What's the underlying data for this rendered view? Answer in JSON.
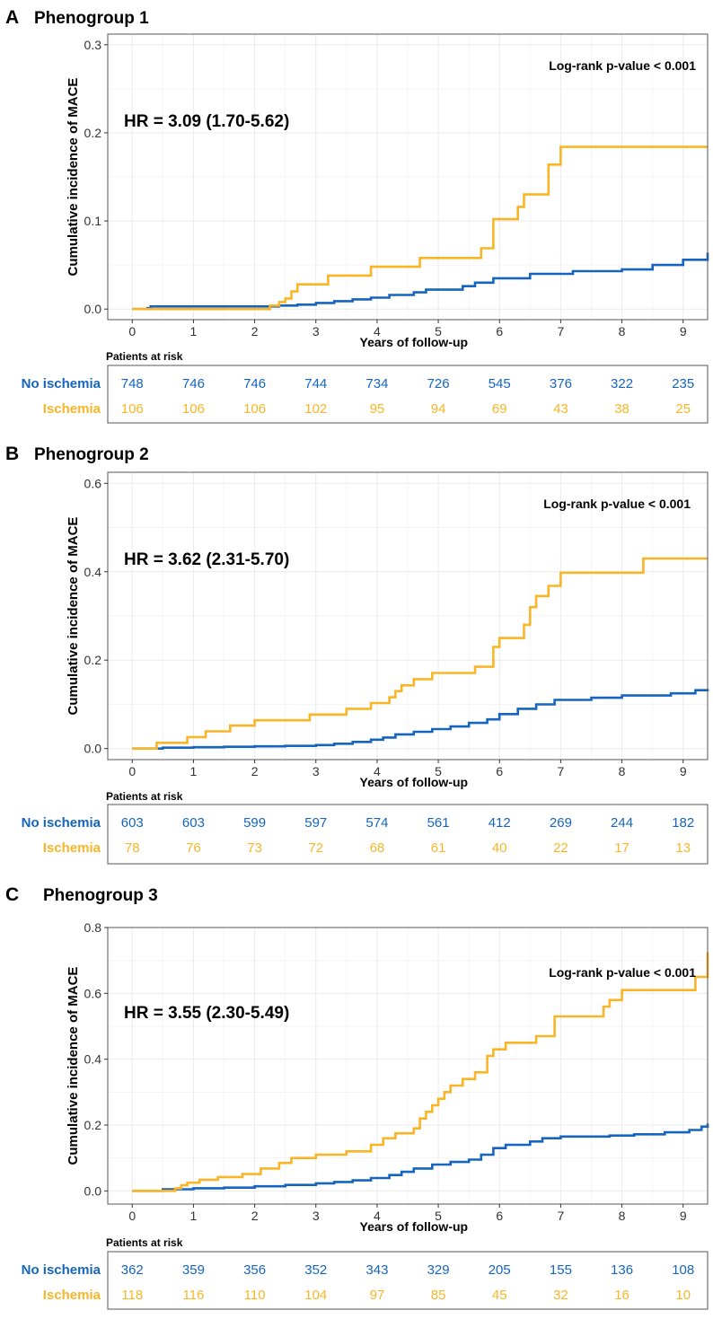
{
  "colors": {
    "no_ischemia": "#1565C0",
    "ischemia": "#F9B526",
    "grid": "#EBEBEB",
    "panel_border": "#555555",
    "axis_text": "#333333"
  },
  "chart_data": [
    {
      "type": "line",
      "step": true,
      "panel_letter": "A",
      "title": "Phenogroup 1",
      "xlabel": "Years of follow-up",
      "ylabel": "Cumulative incidence of MACE",
      "xlim": [
        -0.4,
        9.4
      ],
      "ylim": [
        -0.012,
        0.312
      ],
      "xticks": [
        0,
        1,
        2,
        3,
        4,
        5,
        6,
        7,
        8,
        9
      ],
      "xtick_labels": [
        "0",
        "1",
        "2",
        "3",
        "4",
        "5",
        "6",
        "7",
        "8",
        "9"
      ],
      "yticks": [
        0,
        0.1,
        0.2,
        0.3
      ],
      "ytick_labels": [
        "0.0",
        "0.1",
        "0.2",
        "0.3"
      ],
      "grid": true,
      "annotations": {
        "hr": "HR = 3.09 (1.70-5.62)",
        "logrank": "Log-rank p-value < 0.001"
      },
      "series": [
        {
          "name": "No ischemia",
          "x": [
            0,
            0.25,
            0.3,
            2.4,
            2.7,
            3.0,
            3.3,
            3.6,
            3.9,
            4.2,
            4.6,
            4.8,
            5.4,
            5.6,
            5.9,
            6.5,
            7.2,
            8.0,
            8.5,
            9.0,
            9.4
          ],
          "y": [
            0,
            0.001,
            0.003,
            0.004,
            0.005,
            0.007,
            0.009,
            0.011,
            0.013,
            0.016,
            0.019,
            0.022,
            0.026,
            0.03,
            0.035,
            0.04,
            0.043,
            0.045,
            0.05,
            0.056,
            0.064
          ]
        },
        {
          "name": "Ischemia",
          "x": [
            0,
            2.25,
            2.4,
            2.5,
            2.6,
            2.7,
            3.2,
            3.9,
            4.7,
            5.7,
            5.9,
            6.3,
            6.4,
            6.6,
            6.8,
            7.0,
            9.4
          ],
          "y": [
            0,
            0.004,
            0.008,
            0.012,
            0.02,
            0.028,
            0.038,
            0.048,
            0.058,
            0.069,
            0.102,
            0.116,
            0.13,
            0.13,
            0.164,
            0.184,
            0.184
          ]
        }
      ],
      "risk_table": {
        "title": "Patients at risk",
        "rows": [
          {
            "label": "No ischemia",
            "values": [
              "748",
              "746",
              "746",
              "744",
              "734",
              "726",
              "545",
              "376",
              "322",
              "235"
            ]
          },
          {
            "label": "Ischemia",
            "values": [
              "106",
              "106",
              "106",
              "102",
              "95",
              "94",
              "69",
              "43",
              "38",
              "25"
            ]
          }
        ]
      }
    },
    {
      "type": "line",
      "step": true,
      "panel_letter": "B",
      "title": "Phenogroup 2",
      "xlabel": "Years of follow-up",
      "ylabel": "Cumulative incidence of MACE",
      "xlim": [
        -0.4,
        9.4
      ],
      "ylim": [
        -0.025,
        0.625
      ],
      "xticks": [
        0,
        1,
        2,
        3,
        4,
        5,
        6,
        7,
        8,
        9
      ],
      "xtick_labels": [
        "0",
        "1",
        "2",
        "3",
        "4",
        "5",
        "6",
        "7",
        "8",
        "9"
      ],
      "yticks": [
        0,
        0.2,
        0.4,
        0.6
      ],
      "ytick_labels": [
        "0.0",
        "0.2",
        "0.4",
        "0.6"
      ],
      "grid": true,
      "annotations": {
        "hr": "HR = 3.62 (2.31-5.70)",
        "logrank": "Log-rank p-value < 0.001"
      },
      "series": [
        {
          "name": "No ischemia",
          "x": [
            0,
            0.5,
            1.0,
            1.5,
            2.0,
            2.5,
            3.0,
            3.3,
            3.6,
            3.9,
            4.1,
            4.3,
            4.6,
            4.9,
            5.2,
            5.5,
            5.8,
            6.0,
            6.3,
            6.6,
            6.9,
            7.5,
            8.0,
            8.8,
            9.2,
            9.4
          ],
          "y": [
            0,
            0.002,
            0.003,
            0.004,
            0.005,
            0.006,
            0.008,
            0.011,
            0.015,
            0.02,
            0.025,
            0.032,
            0.038,
            0.044,
            0.05,
            0.058,
            0.066,
            0.078,
            0.09,
            0.1,
            0.11,
            0.115,
            0.12,
            0.125,
            0.132,
            0.135
          ]
        },
        {
          "name": "Ischemia",
          "x": [
            0,
            0.4,
            0.9,
            1.2,
            1.6,
            2.0,
            2.9,
            3.5,
            3.9,
            4.2,
            4.3,
            4.4,
            4.6,
            4.9,
            5.6,
            5.9,
            6.0,
            6.4,
            6.5,
            6.6,
            6.8,
            7.0,
            8.35,
            9.4
          ],
          "y": [
            0,
            0.013,
            0.026,
            0.039,
            0.052,
            0.064,
            0.077,
            0.09,
            0.103,
            0.116,
            0.13,
            0.143,
            0.157,
            0.171,
            0.185,
            0.23,
            0.25,
            0.28,
            0.32,
            0.345,
            0.368,
            0.398,
            0.43,
            0.43
          ]
        }
      ],
      "risk_table": {
        "title": "Patients at risk",
        "rows": [
          {
            "label": "No ischemia",
            "values": [
              "603",
              "603",
              "599",
              "597",
              "574",
              "561",
              "412",
              "269",
              "244",
              "182"
            ]
          },
          {
            "label": "Ischemia",
            "values": [
              "78",
              "76",
              "73",
              "72",
              "68",
              "61",
              "40",
              "22",
              "17",
              "13"
            ]
          }
        ]
      }
    },
    {
      "type": "line",
      "step": true,
      "panel_letter": "C",
      "title": "Phenogroup 3",
      "xlabel": "Years of follow-up",
      "ylabel": "Cumulative incidence of MACE",
      "xlim": [
        -0.4,
        9.4
      ],
      "ylim": [
        -0.04,
        0.8
      ],
      "xticks": [
        0,
        1,
        2,
        3,
        4,
        5,
        6,
        7,
        8,
        9
      ],
      "xtick_labels": [
        "0",
        "1",
        "2",
        "3",
        "4",
        "5",
        "6",
        "7",
        "8",
        "9"
      ],
      "yticks": [
        0,
        0.2,
        0.4,
        0.6,
        0.8
      ],
      "ytick_labels": [
        "0.0",
        "0.2",
        "0.4",
        "0.6",
        "0.8"
      ],
      "grid": true,
      "annotations": {
        "hr": "HR = 3.55 (2.30-5.49)",
        "logrank": "Log-rank p-value < 0.001"
      },
      "series": [
        {
          "name": "No ischemia",
          "x": [
            0,
            0.5,
            1.0,
            1.5,
            2.0,
            2.5,
            3.0,
            3.3,
            3.6,
            3.9,
            4.2,
            4.4,
            4.6,
            4.9,
            5.2,
            5.5,
            5.7,
            5.9,
            6.1,
            6.5,
            6.7,
            7.0,
            7.8,
            8.2,
            8.7,
            9.1,
            9.3,
            9.4
          ],
          "y": [
            0,
            0.005,
            0.008,
            0.01,
            0.014,
            0.018,
            0.023,
            0.027,
            0.032,
            0.039,
            0.048,
            0.058,
            0.068,
            0.08,
            0.088,
            0.095,
            0.11,
            0.13,
            0.14,
            0.15,
            0.16,
            0.165,
            0.168,
            0.172,
            0.178,
            0.185,
            0.195,
            0.205
          ]
        },
        {
          "name": "Ischemia",
          "x": [
            0,
            0.7,
            0.8,
            0.9,
            1.1,
            1.4,
            1.8,
            2.1,
            2.4,
            2.6,
            3.0,
            3.5,
            3.9,
            4.1,
            4.3,
            4.6,
            4.7,
            4.8,
            4.9,
            5.0,
            5.1,
            5.2,
            5.4,
            5.6,
            5.8,
            5.9,
            6.1,
            6.6,
            6.9,
            7.7,
            7.8,
            8.0,
            9.2,
            9.4
          ],
          "y": [
            0,
            0.008,
            0.017,
            0.025,
            0.034,
            0.042,
            0.051,
            0.068,
            0.085,
            0.1,
            0.11,
            0.12,
            0.14,
            0.16,
            0.175,
            0.19,
            0.22,
            0.24,
            0.26,
            0.28,
            0.3,
            0.32,
            0.34,
            0.36,
            0.41,
            0.43,
            0.45,
            0.47,
            0.53,
            0.56,
            0.58,
            0.61,
            0.65,
            0.725
          ]
        }
      ],
      "risk_table": {
        "title": "Patients at risk",
        "rows": [
          {
            "label": "No ischemia",
            "values": [
              "362",
              "359",
              "356",
              "352",
              "343",
              "329",
              "205",
              "155",
              "136",
              "108"
            ]
          },
          {
            "label": "Ischemia",
            "values": [
              "118",
              "116",
              "110",
              "104",
              "97",
              "85",
              "45",
              "32",
              "16",
              "10"
            ]
          }
        ]
      }
    }
  ]
}
